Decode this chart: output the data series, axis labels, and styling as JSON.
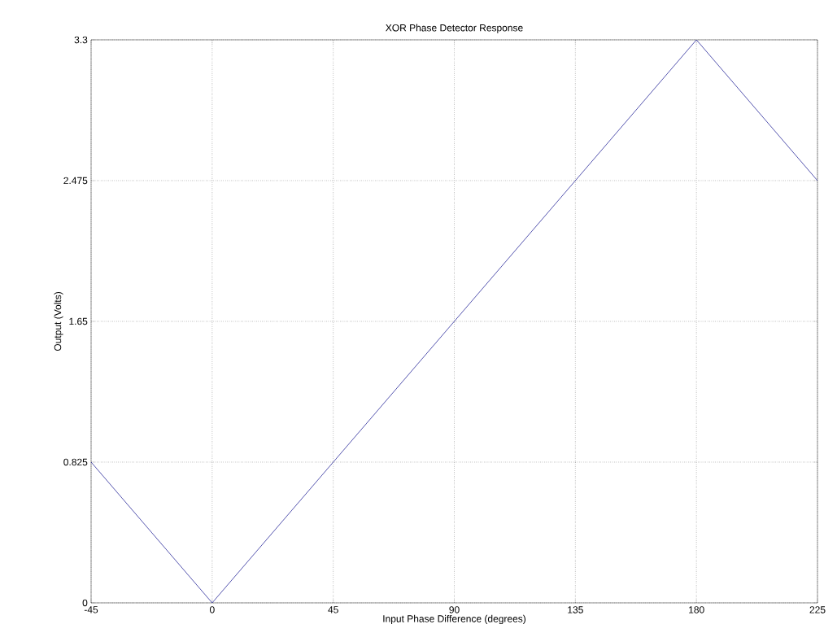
{
  "chart_data": {
    "type": "line",
    "title": "XOR Phase Detector Response",
    "xlabel": "Input Phase Difference (degrees)",
    "ylabel": "Output (Volts)",
    "x": [
      -45,
      0,
      180,
      225
    ],
    "series": [
      {
        "color": "#2b2b9b",
        "values": [
          0.825,
          0,
          3.3,
          2.475
        ]
      }
    ],
    "xlim": [
      -45,
      225
    ],
    "ylim": [
      0,
      3.3
    ],
    "xticks": [
      -45,
      0,
      45,
      90,
      135,
      180,
      225
    ],
    "yticks": [
      0,
      0.825,
      1.65,
      2.475,
      3.3
    ],
    "grid": true
  }
}
